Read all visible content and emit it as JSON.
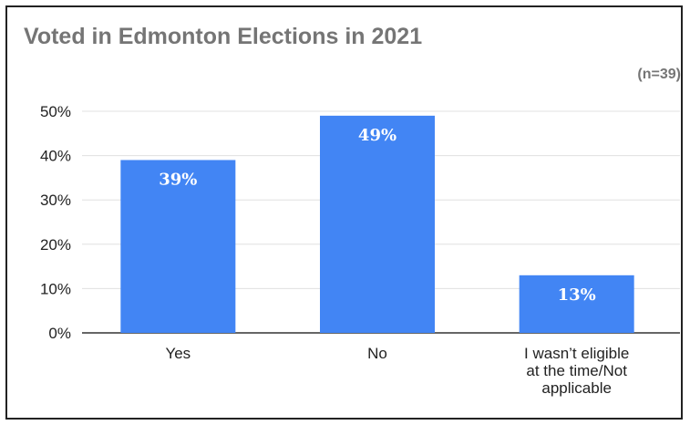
{
  "chart_data": {
    "type": "bar",
    "title": "Voted in Edmonton Elections in 2021",
    "subtitle": "(n=39)",
    "categories": [
      [
        "Yes"
      ],
      [
        "No"
      ],
      [
        "I wasn’t eligible",
        "at the time/Not",
        "applicable"
      ]
    ],
    "values": [
      39,
      49,
      13
    ],
    "data_labels": [
      "39%",
      "49%",
      "13%"
    ],
    "ylim": [
      0,
      50
    ],
    "yticks": [
      "0%",
      "10%",
      "20%",
      "30%",
      "40%",
      "50%"
    ],
    "ytick_values": [
      0,
      10,
      20,
      30,
      40,
      50
    ],
    "xlabel": "",
    "ylabel": "",
    "grid": true,
    "legend": "none",
    "colors": {
      "bar": "#4285f4",
      "grid": "#e0e0e0",
      "axis": "#333333",
      "title": "#757575",
      "tick_text": "#222222",
      "data_label": "#ffffff"
    }
  }
}
